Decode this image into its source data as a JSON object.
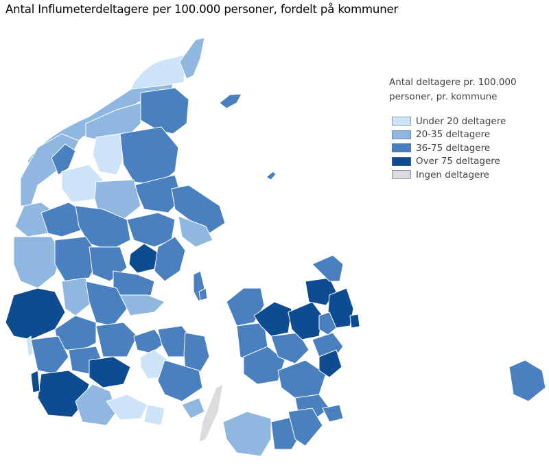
{
  "title": "Antal Influmeterdeltagere per 100.000 personer, fordelt på kommuner",
  "legend": {
    "title": "Antal deltagere pr. 100.000 personer, pr. kommune",
    "items": [
      {
        "label": "Under 20 deltagere",
        "color": "#cde3f7"
      },
      {
        "label": "20-35 deltagere",
        "color": "#8fb7df"
      },
      {
        "label": "36-75 deltagere",
        "color": "#4a80bf"
      },
      {
        "label": "Over 75 deltagere",
        "color": "#0d4c91"
      },
      {
        "label": "Ingen deltagere",
        "color": "#dcdcdc"
      }
    ]
  }
}
